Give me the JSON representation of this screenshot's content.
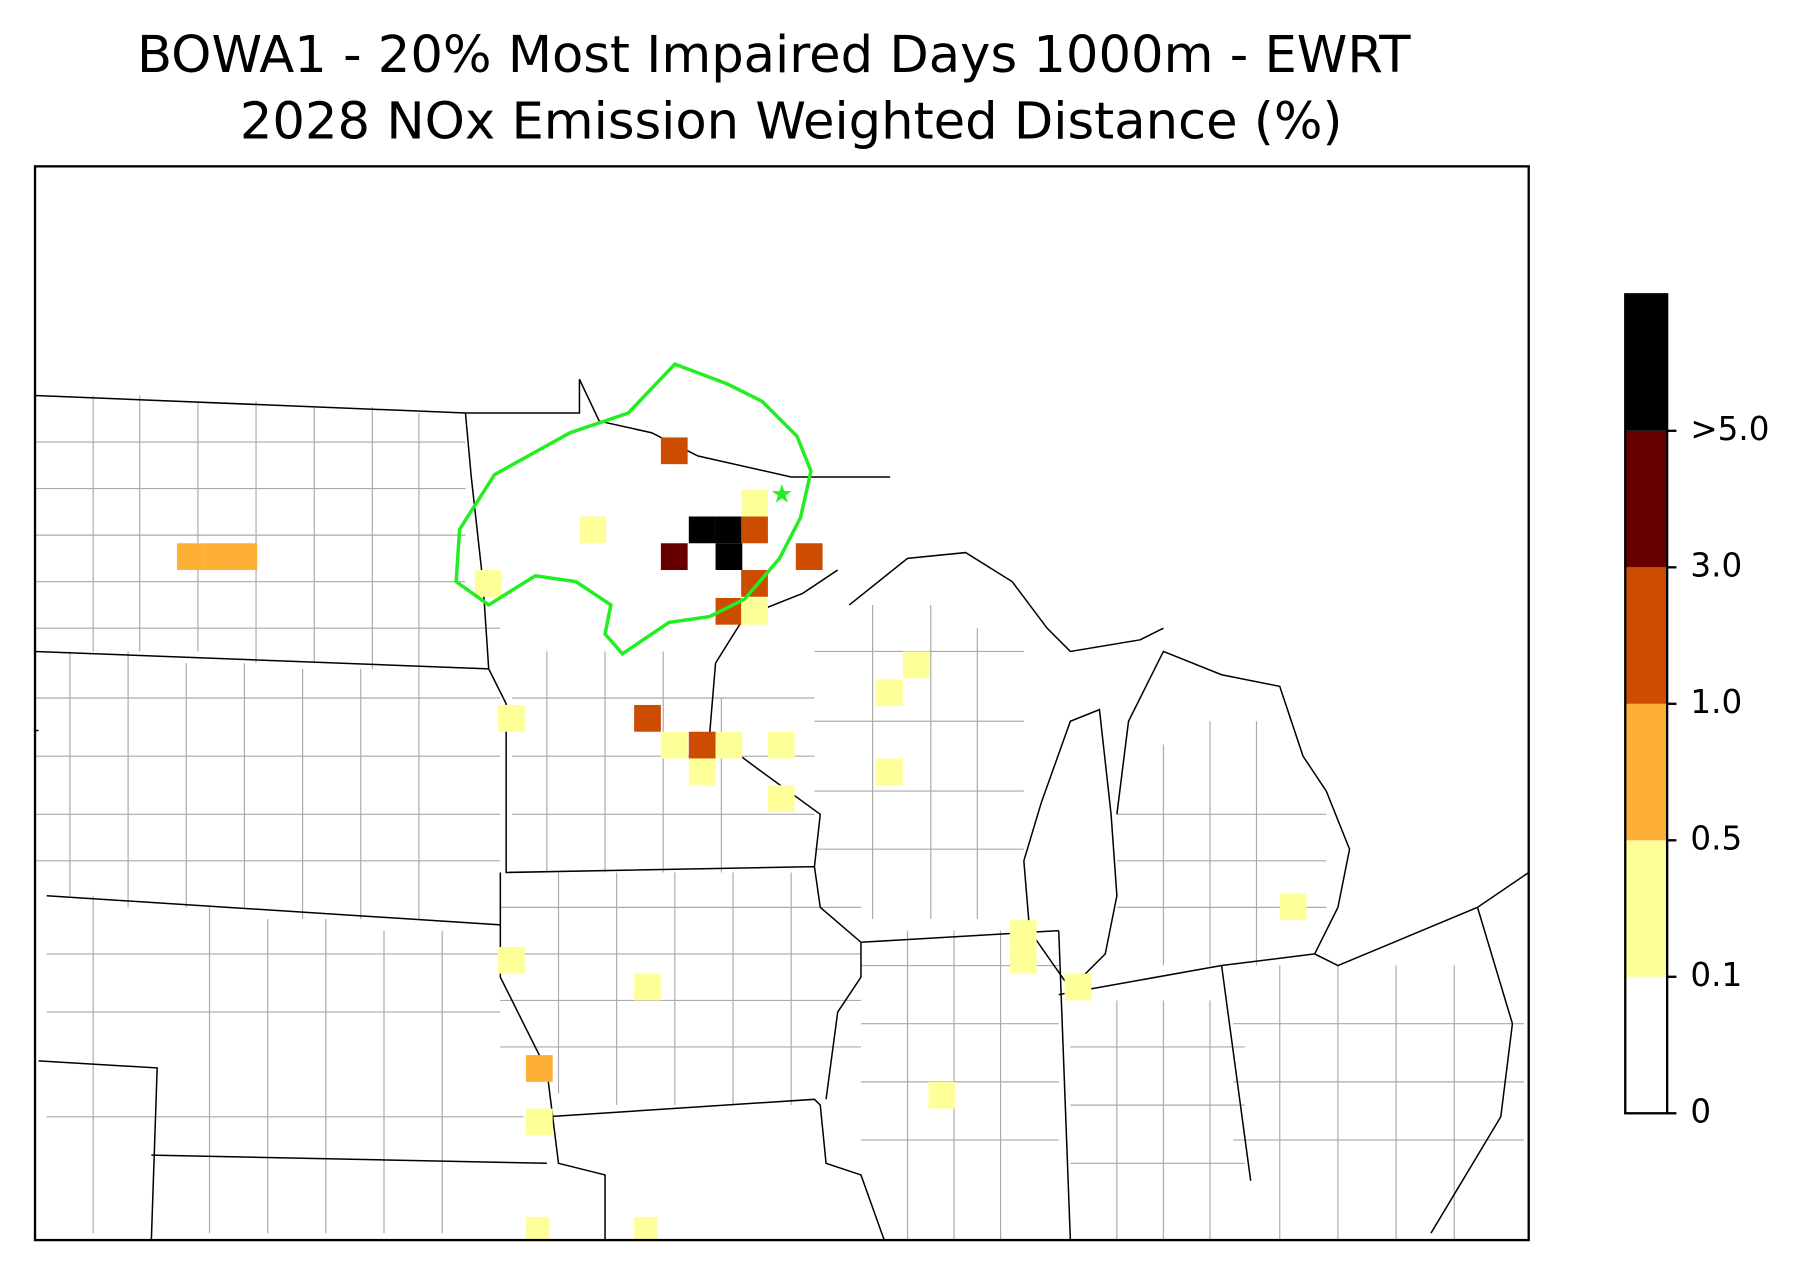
{
  "title": [
    "BOWA1 - 20% Most Impaired Days 1000m - EWRT",
    "2028 NOx Emission Weighted Distance (%)"
  ],
  "colorbar": {
    "colors": [
      "#ffffff",
      "#ffff99",
      "#fdb035",
      "#cc4c02",
      "#660000",
      "#000000"
    ],
    "ticks": [
      0,
      0.1,
      0.5,
      {
        "value": 1,
        "label": "1.0"
      },
      {
        "value": 3,
        "label": "3.0"
      },
      {
        "value": 5,
        "label": ">5.0"
      }
    ]
  }
}
